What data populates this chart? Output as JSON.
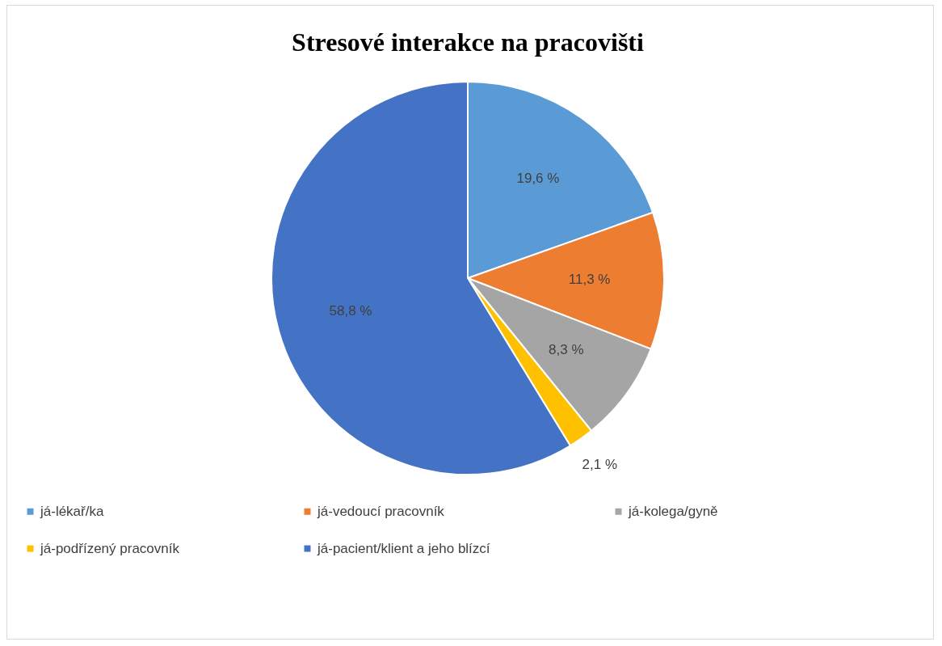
{
  "chart_data": {
    "type": "pie",
    "title": "Stresové interakce na pracovišti",
    "categories": [
      "já-lékař/ka",
      "já-vedoucí pracovník",
      "já-kolega/gyně",
      "já-podřízený pracovník",
      "já-pacient/klient a jeho blízcí"
    ],
    "values": [
      19.6,
      11.3,
      8.3,
      2.1,
      58.8
    ],
    "colors": [
      "#5b9bd5",
      "#ed7d31",
      "#a5a5a5",
      "#ffc000",
      "#4472c4"
    ],
    "value_labels": [
      "19,6 %",
      "11,3 %",
      "8,3 %",
      "2,1 %",
      "58,8 %"
    ],
    "legend": "bottom"
  }
}
